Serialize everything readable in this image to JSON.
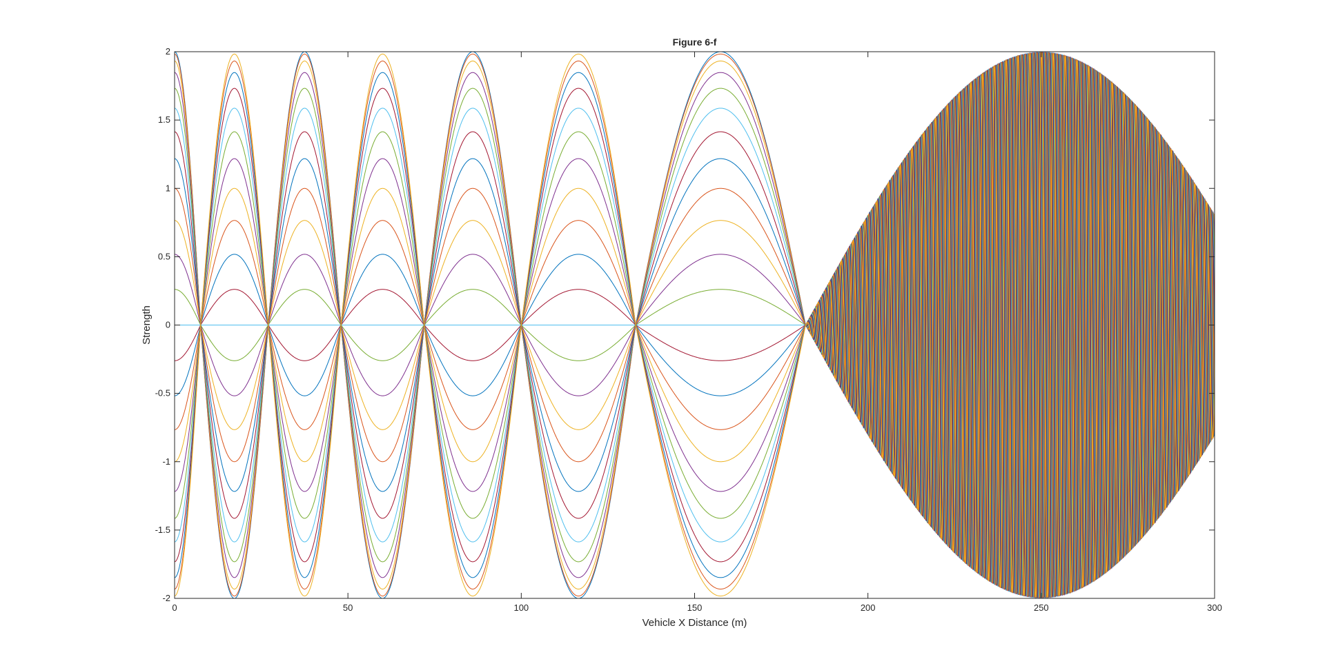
{
  "chart_data": {
    "type": "line",
    "title": "Figure 6-f",
    "xlabel": "Vehicle X Distance (m)",
    "ylabel": "Strength",
    "xlim": [
      0,
      300
    ],
    "ylim": [
      -2,
      2
    ],
    "xticks": [
      0,
      50,
      100,
      150,
      200,
      250,
      300
    ],
    "yticks": [
      -2,
      -1.5,
      -1,
      -0.5,
      0,
      0.5,
      1,
      1.5,
      2
    ],
    "xtick_labels": [
      "0",
      "50",
      "100",
      "150",
      "200",
      "250",
      "300"
    ],
    "ytick_labels": [
      "-2",
      "-1.5",
      "-1",
      "-0.5",
      "0",
      "0.5",
      "1",
      "1.5",
      "2"
    ],
    "grid": false,
    "legend": "none",
    "description_of_series": "Family of interference curves y = 2*cos(pi*x/(2*L))*cos(k*x + phi) for many phase offsets; envelope nodes near x = 7.5, 27, 48, 72, 100, 133, 182",
    "envelope": {
      "amplitude": 2,
      "nodes_x": [
        7.5,
        27,
        48,
        72,
        100,
        133,
        182
      ],
      "antinode_peaks_x": [
        17,
        37,
        60,
        86,
        116,
        155,
        250
      ]
    },
    "num_series": 24,
    "colors": [
      "#0072BD",
      "#D95319",
      "#EDB120",
      "#7E2F8E",
      "#77AC30",
      "#4DBEEE",
      "#A2142F"
    ]
  }
}
